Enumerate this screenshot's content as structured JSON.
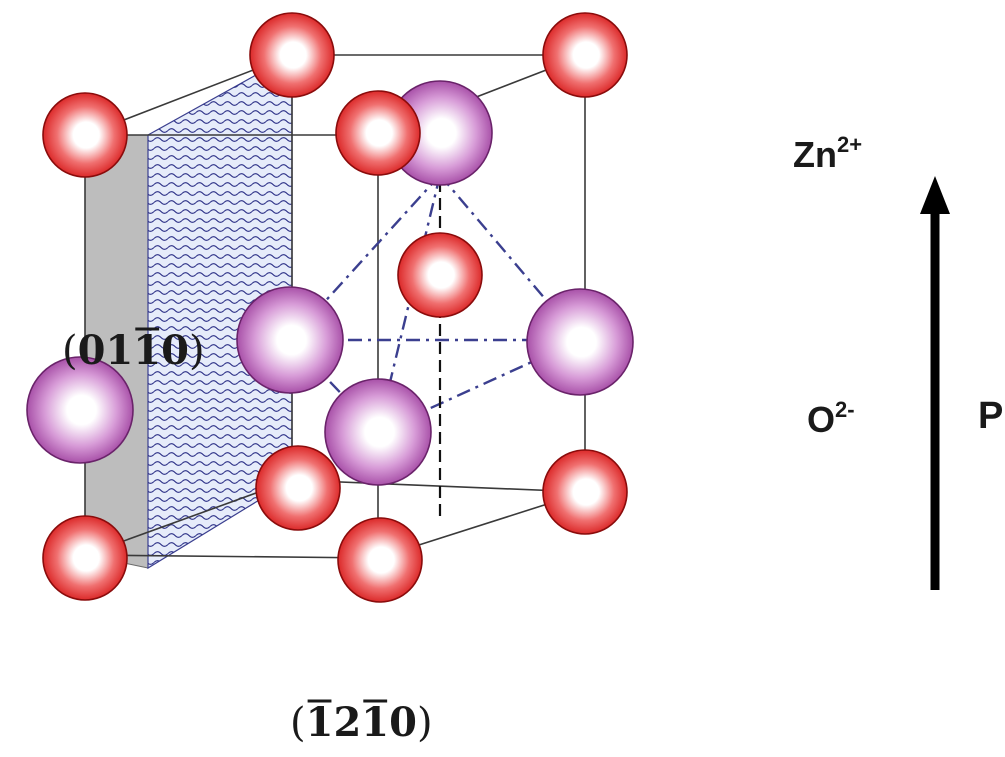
{
  "diagram": {
    "label_zn": "Zn",
    "label_zn_sup": "2+",
    "label_o": "O",
    "label_o_sup": "2-",
    "label_p": "P",
    "plane_side_digits": [
      "0",
      "1",
      "1",
      "0"
    ],
    "plane_side_overlined": [
      false,
      false,
      true,
      false
    ],
    "plane_bottom_digits": [
      "1",
      "2",
      "1",
      "0"
    ],
    "plane_bottom_overlined": [
      true,
      false,
      true,
      false
    ],
    "colors": {
      "oxygen_ion": "#e01818",
      "zinc_ion": "#9a3a9a",
      "cell_edge": "#3a3a3a",
      "bond_line": "#3b3f8f",
      "plane_fill": "#e6ecfa",
      "plane_wave": "#2b2f86",
      "side_face": "#bdbdbd",
      "arrow": "#000000"
    }
  }
}
